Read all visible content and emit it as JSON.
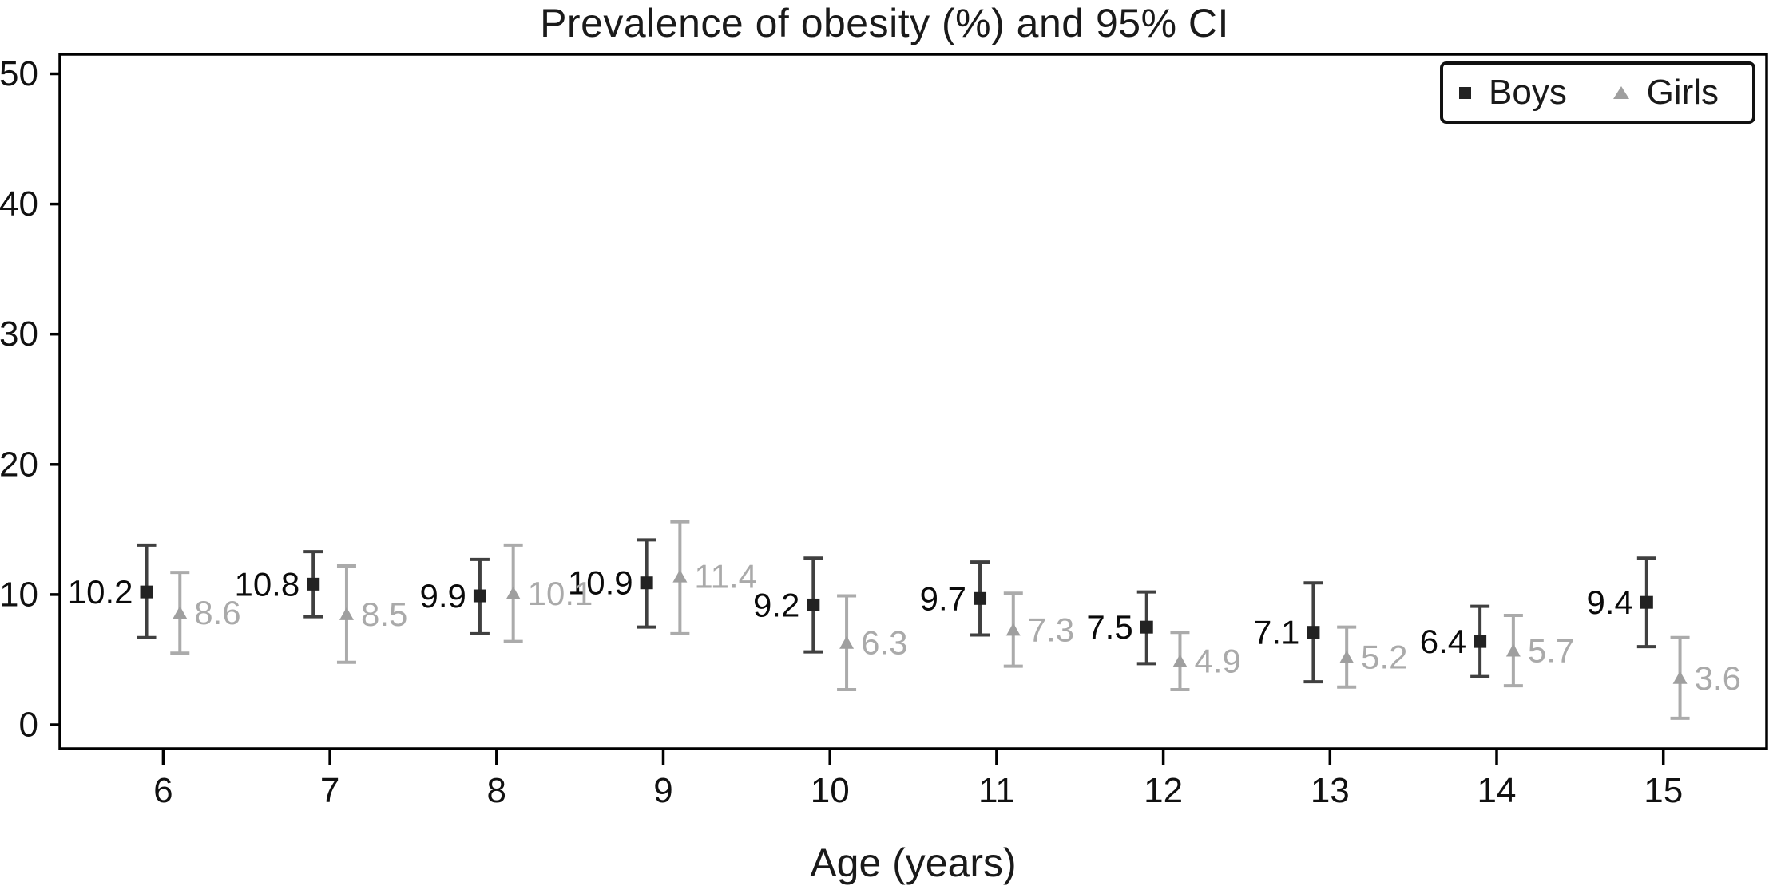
{
  "chart_data": {
    "type": "scatter",
    "subtype": "point-estimates-with-95ci-error-bars",
    "title": "Prevalence of obesity (%) and 95% CI",
    "xlabel": "Age (years)",
    "ylabel": "",
    "x": [
      6,
      7,
      8,
      9,
      10,
      11,
      12,
      13,
      14,
      15
    ],
    "x_tick_labels": [
      "6",
      "7",
      "8",
      "9",
      "10",
      "11",
      "12",
      "13",
      "14",
      "15"
    ],
    "y_ticks": [
      0,
      10,
      20,
      30,
      40,
      50
    ],
    "y_tick_labels": [
      "0",
      "10",
      "20",
      "30",
      "40",
      "50"
    ],
    "ylim": [
      0,
      50
    ],
    "xlim": [
      5.4,
      15.6
    ],
    "grid": false,
    "legend_position": "top-right",
    "axis_color": "#000000",
    "tick_label_color": "#111111",
    "series": [
      {
        "name": "Boys",
        "marker": "square",
        "marker_color": "#222222",
        "line_color": "#404040",
        "label_color": "#0a0a0a",
        "label_side": "left",
        "x_offset": -0.1,
        "values": [
          10.2,
          10.8,
          9.9,
          10.9,
          9.2,
          9.7,
          7.5,
          7.1,
          6.4,
          9.4
        ],
        "ci_low": [
          6.7,
          8.3,
          7.0,
          7.5,
          5.6,
          6.9,
          4.7,
          3.3,
          3.7,
          6.0
        ],
        "ci_high": [
          13.8,
          13.3,
          12.7,
          14.2,
          12.8,
          12.5,
          10.2,
          10.9,
          9.1,
          12.8
        ],
        "point_labels": [
          "10.2",
          "10.8",
          "9.9",
          "10.9",
          "9.2",
          "9.7",
          "7.5",
          "7.1",
          "6.4",
          "9.4"
        ]
      },
      {
        "name": "Girls",
        "marker": "triangle",
        "marker_color": "#9f9f9f",
        "line_color": "#ababab",
        "label_color": "#aaaaaa",
        "label_side": "right",
        "x_offset": 0.1,
        "values": [
          8.6,
          8.5,
          10.1,
          11.4,
          6.3,
          7.3,
          4.9,
          5.2,
          5.7,
          3.6
        ],
        "ci_low": [
          5.5,
          4.8,
          6.4,
          7.0,
          2.7,
          4.5,
          2.7,
          2.9,
          3.0,
          0.5
        ],
        "ci_high": [
          11.7,
          12.2,
          13.8,
          15.6,
          9.9,
          10.1,
          7.1,
          7.5,
          8.4,
          6.7
        ],
        "point_labels": [
          "8.6",
          "8.5",
          "10.1",
          "11.4",
          "6.3",
          "7.3",
          "4.9",
          "5.2",
          "5.7",
          "3.6"
        ]
      }
    ]
  }
}
